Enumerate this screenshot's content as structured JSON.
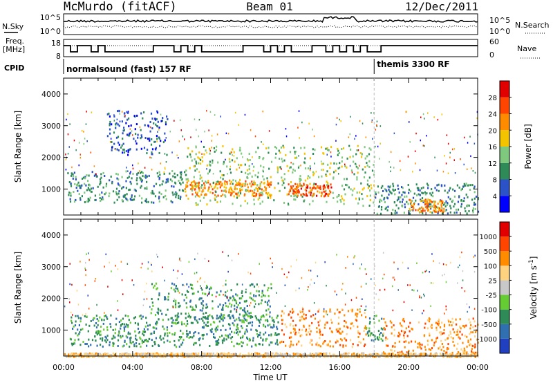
{
  "header": {
    "station": "McMurdo (fitACF)",
    "beam": "Beam 01",
    "date": "12/Dec/2011"
  },
  "noise_panel": {
    "left_label": "N.Sky",
    "right_label": "N.Search",
    "tick_top": "10^5",
    "tick_bottom": "10^0",
    "tick_top_right": "10^5",
    "tick_bottom_right": "10^0"
  },
  "freq_panel": {
    "left_label_line1": "Freq.",
    "left_label_line2": "[MHz]",
    "left_ticks": [
      "18",
      "8"
    ],
    "right_label": "Nave",
    "right_ticks": [
      "60",
      "0"
    ]
  },
  "cpid_panel": {
    "label": "CPID",
    "modes": [
      {
        "name": "normalsound (fast) 157 RF",
        "start_hour": 0
      },
      {
        "name": "themis 3300 RF",
        "start_hour": 18
      }
    ]
  },
  "chart_data": [
    {
      "type": "heatmap",
      "parameter": "power",
      "xlabel": "",
      "ylabel": "Slant Range [km]",
      "xlim": [
        0,
        24
      ],
      "ylim": [
        180,
        4500
      ],
      "yticks": [
        1000,
        2000,
        3000,
        4000
      ],
      "colorbar_label": "Power [dB]",
      "colorbar_ticks": [
        "4",
        "8",
        "12",
        "16",
        "20",
        "24",
        "28"
      ],
      "colorbar_colors": [
        "#0000ff",
        "#2c52c8",
        "#2e8b57",
        "#7fc97f",
        "#f5c400",
        "#ff8c00",
        "#ff4500",
        "#e00000"
      ],
      "echo_regions": [
        {
          "t0": 0.2,
          "t1": 7.0,
          "r0": 600,
          "r1": 1600,
          "level": 2
        },
        {
          "t0": 2.5,
          "t1": 6.0,
          "r0": 2100,
          "r1": 3500,
          "level": 1
        },
        {
          "t0": 7.0,
          "t1": 12.0,
          "r0": 800,
          "r1": 1300,
          "level": 5
        },
        {
          "t0": 7.0,
          "t1": 18.0,
          "r0": 500,
          "r1": 2400,
          "level": 3
        },
        {
          "t0": 13.0,
          "t1": 15.5,
          "r0": 800,
          "r1": 1200,
          "level": 6
        },
        {
          "t0": 18.0,
          "t1": 24.0,
          "r0": 250,
          "r1": 1200,
          "level": 2
        },
        {
          "t0": 20.0,
          "t1": 22.0,
          "r0": 300,
          "r1": 700,
          "level": 5
        }
      ]
    },
    {
      "type": "heatmap",
      "parameter": "velocity",
      "xlabel": "Time UT",
      "ylabel": "Slant Range [km]",
      "xlim": [
        0,
        24
      ],
      "ylim": [
        180,
        4500
      ],
      "xticks": [
        "00:00",
        "04:00",
        "08:00",
        "12:00",
        "16:00",
        "20:00",
        "00:00"
      ],
      "yticks": [
        1000,
        2000,
        3000,
        4000
      ],
      "colorbar_label": "Velocity [m s",
      "colorbar_exponent": "-1",
      "colorbar_ticks": [
        "1000",
        "500",
        "100",
        "25",
        "-25",
        "-100",
        "-500",
        "-1000"
      ],
      "colorbar_colors": [
        "#2040c0",
        "#3070b0",
        "#2e8b57",
        "#66cc33",
        "#c8c8c8",
        "#ffd27f",
        "#ff8c00",
        "#ff4500",
        "#e00000"
      ],
      "echo_regions": [
        {
          "t0": 0.3,
          "t1": 12.5,
          "r0": 500,
          "r1": 1500,
          "level": 2
        },
        {
          "t0": 5.0,
          "t1": 12.0,
          "r0": 1200,
          "r1": 2500,
          "level": 2
        },
        {
          "t0": 12.5,
          "t1": 17.5,
          "r0": 500,
          "r1": 1700,
          "level": 6
        },
        {
          "t0": 17.5,
          "t1": 18.5,
          "r0": 600,
          "r1": 1500,
          "level": 2
        },
        {
          "t0": 18.5,
          "t1": 24.0,
          "r0": 300,
          "r1": 1400,
          "level": 6
        },
        {
          "t0": 0.0,
          "t1": 24.0,
          "r0": 180,
          "r1": 300,
          "level": 5
        }
      ]
    }
  ]
}
